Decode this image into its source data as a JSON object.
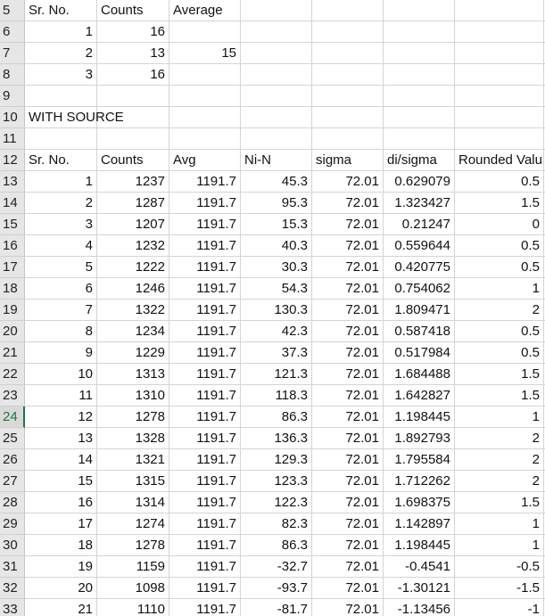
{
  "active_row": "24",
  "rows": [
    {
      "row": "5",
      "cells": [
        "Sr. No.",
        "Counts",
        "Average",
        "",
        "",
        "",
        "",
        ""
      ]
    },
    {
      "row": "6",
      "cells": [
        "1",
        "16",
        "",
        "",
        "",
        "",
        "",
        ""
      ]
    },
    {
      "row": "7",
      "cells": [
        "2",
        "13",
        "15",
        "",
        "",
        "",
        "",
        ""
      ]
    },
    {
      "row": "8",
      "cells": [
        "3",
        "16",
        "",
        "",
        "",
        "",
        "",
        ""
      ]
    },
    {
      "row": "9",
      "cells": [
        "",
        "",
        "",
        "",
        "",
        "",
        "",
        ""
      ]
    },
    {
      "row": "10",
      "cells": [
        "WITH SOURCE",
        "",
        "",
        "",
        "",
        "",
        "",
        ""
      ]
    },
    {
      "row": "11",
      "cells": [
        "",
        "",
        "",
        "",
        "",
        "",
        "",
        ""
      ]
    },
    {
      "row": "12",
      "cells": [
        "Sr. No.",
        "Counts",
        "Avg",
        "Ni-N",
        "sigma",
        "di/sigma",
        "Rounded Valu",
        ""
      ]
    },
    {
      "row": "13",
      "cells": [
        "1",
        "1237",
        "1191.7",
        "45.3",
        "72.01",
        "0.629079",
        "0.5",
        ""
      ]
    },
    {
      "row": "14",
      "cells": [
        "2",
        "1287",
        "1191.7",
        "95.3",
        "72.01",
        "1.323427",
        "1.5",
        ""
      ]
    },
    {
      "row": "15",
      "cells": [
        "3",
        "1207",
        "1191.7",
        "15.3",
        "72.01",
        "0.21247",
        "0",
        ""
      ]
    },
    {
      "row": "16",
      "cells": [
        "4",
        "1232",
        "1191.7",
        "40.3",
        "72.01",
        "0.559644",
        "0.5",
        ""
      ]
    },
    {
      "row": "17",
      "cells": [
        "5",
        "1222",
        "1191.7",
        "30.3",
        "72.01",
        "0.420775",
        "0.5",
        ""
      ]
    },
    {
      "row": "18",
      "cells": [
        "6",
        "1246",
        "1191.7",
        "54.3",
        "72.01",
        "0.754062",
        "1",
        ""
      ]
    },
    {
      "row": "19",
      "cells": [
        "7",
        "1322",
        "1191.7",
        "130.3",
        "72.01",
        "1.809471",
        "2",
        ""
      ]
    },
    {
      "row": "20",
      "cells": [
        "8",
        "1234",
        "1191.7",
        "42.3",
        "72.01",
        "0.587418",
        "0.5",
        ""
      ]
    },
    {
      "row": "21",
      "cells": [
        "9",
        "1229",
        "1191.7",
        "37.3",
        "72.01",
        "0.517984",
        "0.5",
        ""
      ]
    },
    {
      "row": "22",
      "cells": [
        "10",
        "1313",
        "1191.7",
        "121.3",
        "72.01",
        "1.684488",
        "1.5",
        ""
      ]
    },
    {
      "row": "23",
      "cells": [
        "11",
        "1310",
        "1191.7",
        "118.3",
        "72.01",
        "1.642827",
        "1.5",
        ""
      ]
    },
    {
      "row": "24",
      "cells": [
        "12",
        "1278",
        "1191.7",
        "86.3",
        "72.01",
        "1.198445",
        "1",
        ""
      ]
    },
    {
      "row": "25",
      "cells": [
        "13",
        "1328",
        "1191.7",
        "136.3",
        "72.01",
        "1.892793",
        "2",
        ""
      ]
    },
    {
      "row": "26",
      "cells": [
        "14",
        "1321",
        "1191.7",
        "129.3",
        "72.01",
        "1.795584",
        "2",
        ""
      ]
    },
    {
      "row": "27",
      "cells": [
        "15",
        "1315",
        "1191.7",
        "123.3",
        "72.01",
        "1.712262",
        "2",
        ""
      ]
    },
    {
      "row": "28",
      "cells": [
        "16",
        "1314",
        "1191.7",
        "122.3",
        "72.01",
        "1.698375",
        "1.5",
        ""
      ]
    },
    {
      "row": "29",
      "cells": [
        "17",
        "1274",
        "1191.7",
        "82.3",
        "72.01",
        "1.142897",
        "1",
        ""
      ]
    },
    {
      "row": "30",
      "cells": [
        "18",
        "1278",
        "1191.7",
        "86.3",
        "72.01",
        "1.198445",
        "1",
        ""
      ]
    },
    {
      "row": "31",
      "cells": [
        "19",
        "1159",
        "1191.7",
        "-32.7",
        "72.01",
        "-0.4541",
        "-0.5",
        ""
      ]
    },
    {
      "row": "32",
      "cells": [
        "20",
        "1098",
        "1191.7",
        "-93.7",
        "72.01",
        "-1.30121",
        "-1.5",
        ""
      ]
    },
    {
      "row": "33",
      "cells": [
        "21",
        "1110",
        "1191.7",
        "-81.7",
        "72.01",
        "-1.13456",
        "-1",
        ""
      ]
    }
  ]
}
